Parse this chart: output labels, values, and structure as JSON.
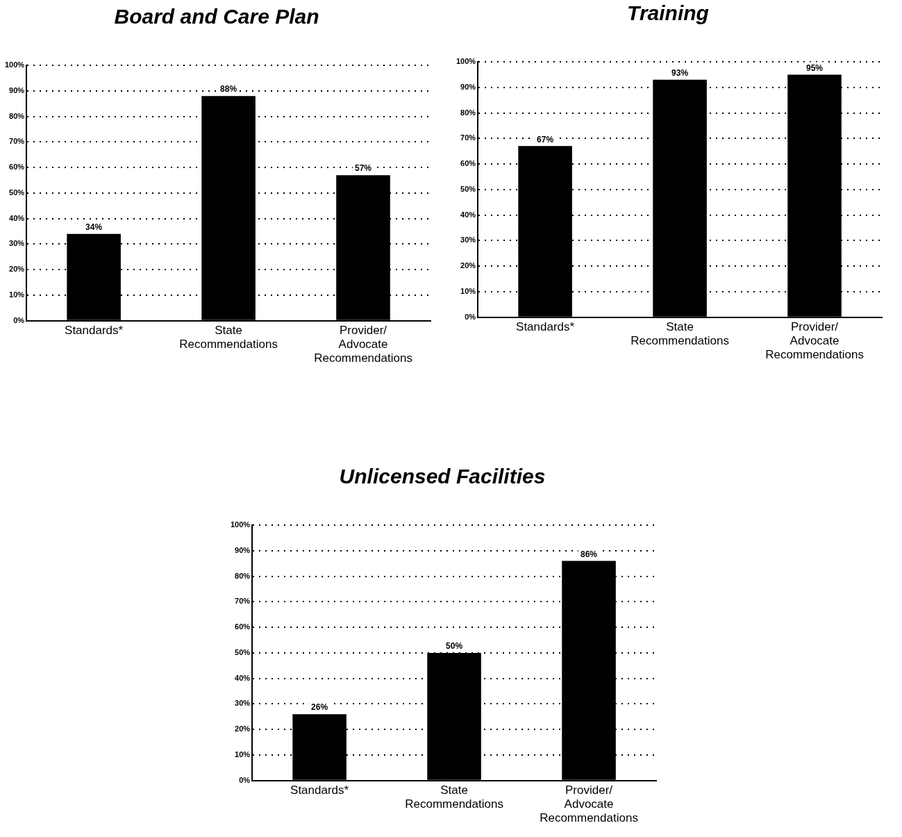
{
  "chart_data": [
    {
      "type": "bar",
      "title": "Board and Care Plan",
      "categories": [
        "Standards*",
        "State Recommendations",
        "Provider/ Advocate Recommendations"
      ],
      "values": [
        34,
        88,
        57
      ],
      "value_labels": [
        "34%",
        "88%",
        "57%"
      ],
      "color": "#000000",
      "ylim": [
        0,
        100
      ],
      "yticks": [
        {
          "value": 0,
          "label": "0%"
        },
        {
          "value": 10,
          "label": "10%"
        },
        {
          "value": 20,
          "label": "20%"
        },
        {
          "value": 30,
          "label": "30%"
        },
        {
          "value": 40,
          "label": "40%"
        },
        {
          "value": 50,
          "label": "50%"
        },
        {
          "value": 60,
          "label": "60%"
        },
        {
          "value": 70,
          "label": "70%"
        },
        {
          "value": 80,
          "label": "80%"
        },
        {
          "value": 90,
          "label": "90%"
        },
        {
          "value": 100,
          "label": "100%"
        }
      ],
      "grid": "y",
      "legend": false
    },
    {
      "type": "bar",
      "title": "Training",
      "categories": [
        "Standards*",
        "State Recommendations",
        "Provider/ Advocate Recommendations"
      ],
      "values": [
        67,
        93,
        95
      ],
      "value_labels": [
        "67%",
        "93%",
        "95%"
      ],
      "color": "#000000",
      "ylim": [
        0,
        100
      ],
      "yticks": [
        {
          "value": 0,
          "label": "0%"
        },
        {
          "value": 10,
          "label": "10%"
        },
        {
          "value": 20,
          "label": "20%"
        },
        {
          "value": 30,
          "label": "30%"
        },
        {
          "value": 40,
          "label": "40%"
        },
        {
          "value": 50,
          "label": "50%"
        },
        {
          "value": 60,
          "label": "60%"
        },
        {
          "value": 70,
          "label": "70%"
        },
        {
          "value": 80,
          "label": "80%"
        },
        {
          "value": 90,
          "label": "90%"
        },
        {
          "value": 100,
          "label": "100%"
        }
      ],
      "grid": "y",
      "legend": false
    },
    {
      "type": "bar",
      "title": "Unlicensed Facilities",
      "categories": [
        "Standards*",
        "State Recommendations",
        "Provider/ Advocate Recommendations"
      ],
      "values": [
        26,
        50,
        86
      ],
      "value_labels": [
        "26%",
        "50%",
        "86%"
      ],
      "color": "#000000",
      "ylim": [
        0,
        100
      ],
      "yticks": [
        {
          "value": 0,
          "label": "0%"
        },
        {
          "value": 10,
          "label": "10%"
        },
        {
          "value": 20,
          "label": "20%"
        },
        {
          "value": 30,
          "label": "30%"
        },
        {
          "value": 40,
          "label": "40%"
        },
        {
          "value": 50,
          "label": "50%"
        },
        {
          "value": 60,
          "label": "60%"
        },
        {
          "value": 70,
          "label": "70%"
        },
        {
          "value": 80,
          "label": "80%"
        },
        {
          "value": 90,
          "label": "90%"
        },
        {
          "value": 100,
          "label": "100%"
        }
      ],
      "grid": "y",
      "legend": false
    }
  ]
}
